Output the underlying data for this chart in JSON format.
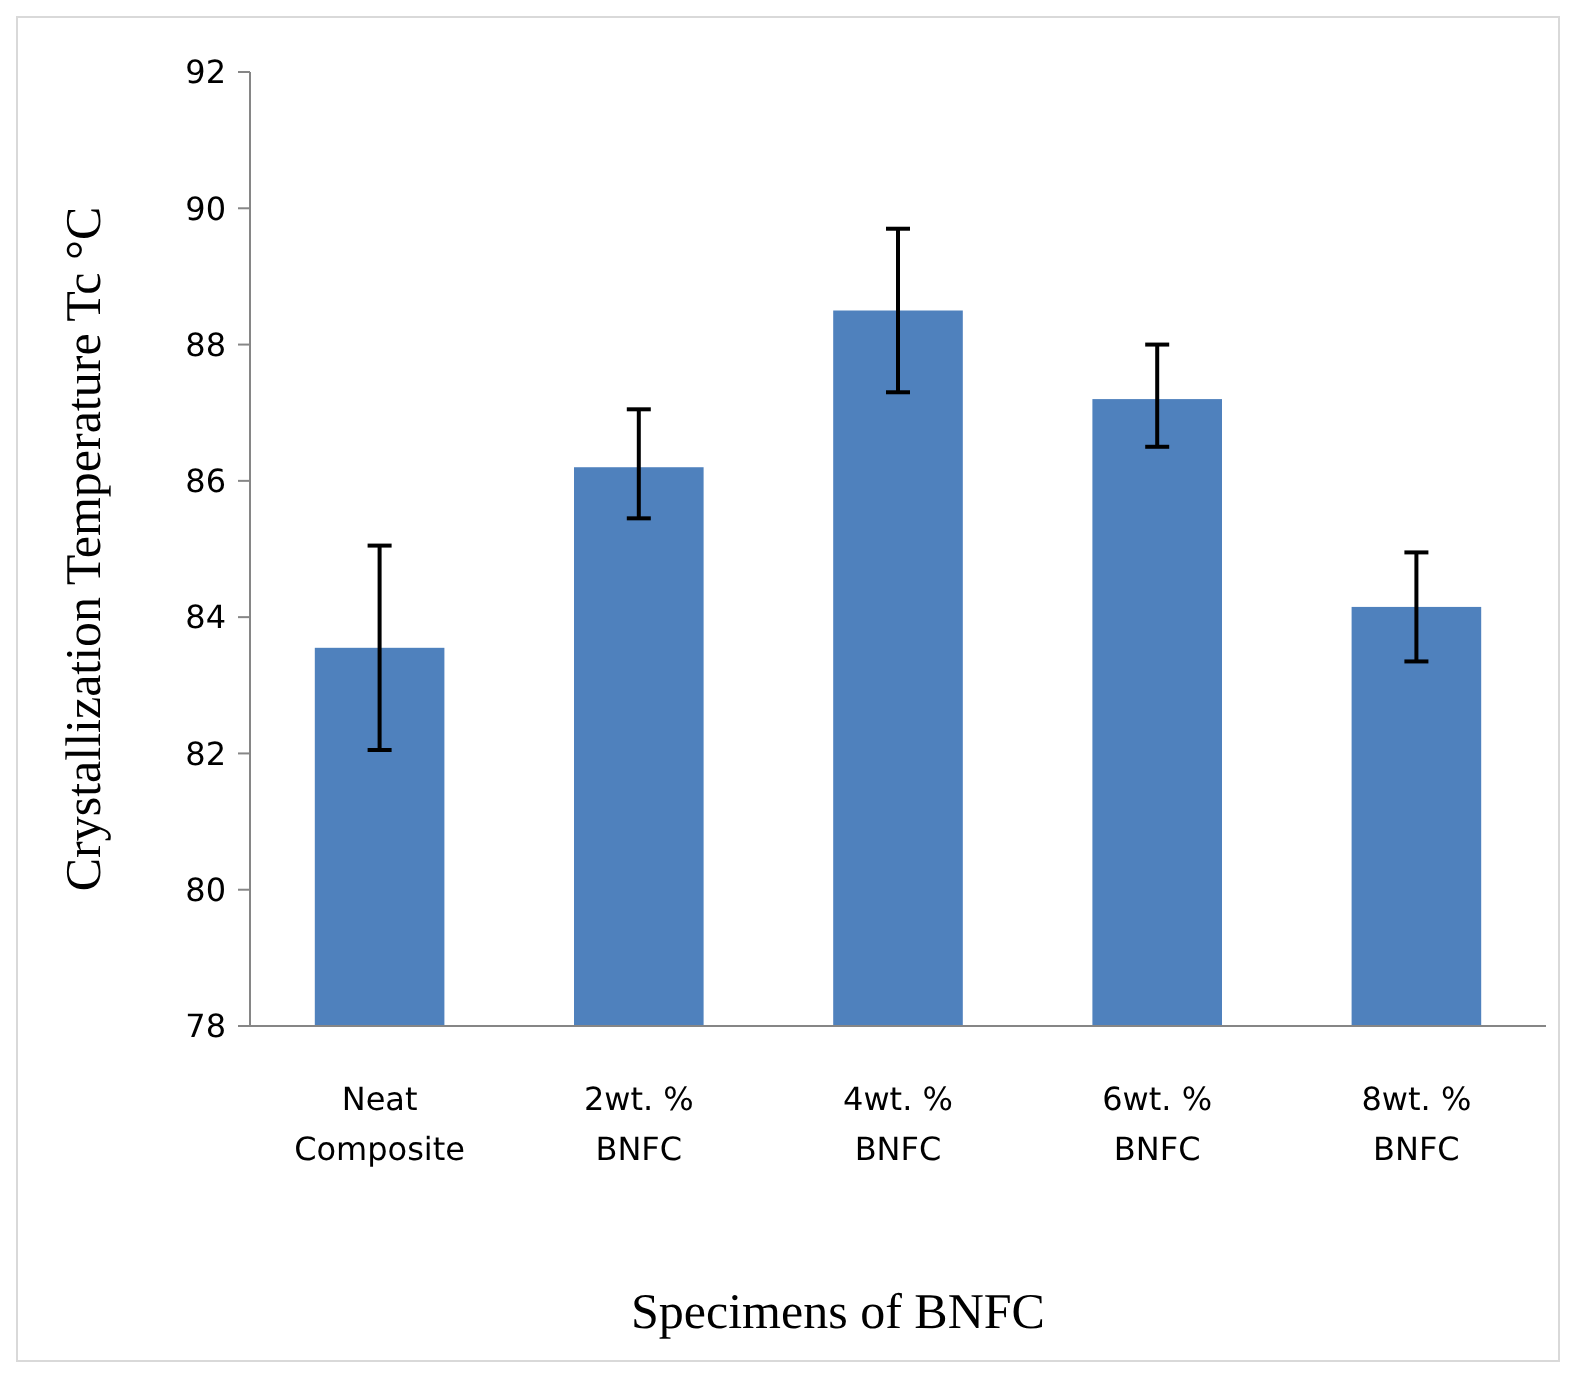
{
  "chart_data": {
    "type": "bar",
    "xlabel": "Specimens of BNFC",
    "ylabel": "Crystallization Temperature Tc °C",
    "categories": [
      "Neat Composite",
      "2wt. % BNFC",
      "4wt. % BNFC",
      "6wt. % BNFC",
      "8wt. % BNFC"
    ],
    "values": [
      83.55,
      86.2,
      88.5,
      87.2,
      84.15
    ],
    "errors": [
      [
        82.05,
        85.05
      ],
      [
        85.45,
        87.05
      ],
      [
        87.3,
        89.7
      ],
      [
        86.5,
        88.0
      ],
      [
        83.35,
        84.95
      ]
    ],
    "color": "#4f81bd",
    "ylim": [
      78,
      92
    ],
    "yticks": [
      78,
      80,
      82,
      84,
      86,
      88,
      90,
      92
    ],
    "grid": false
  }
}
